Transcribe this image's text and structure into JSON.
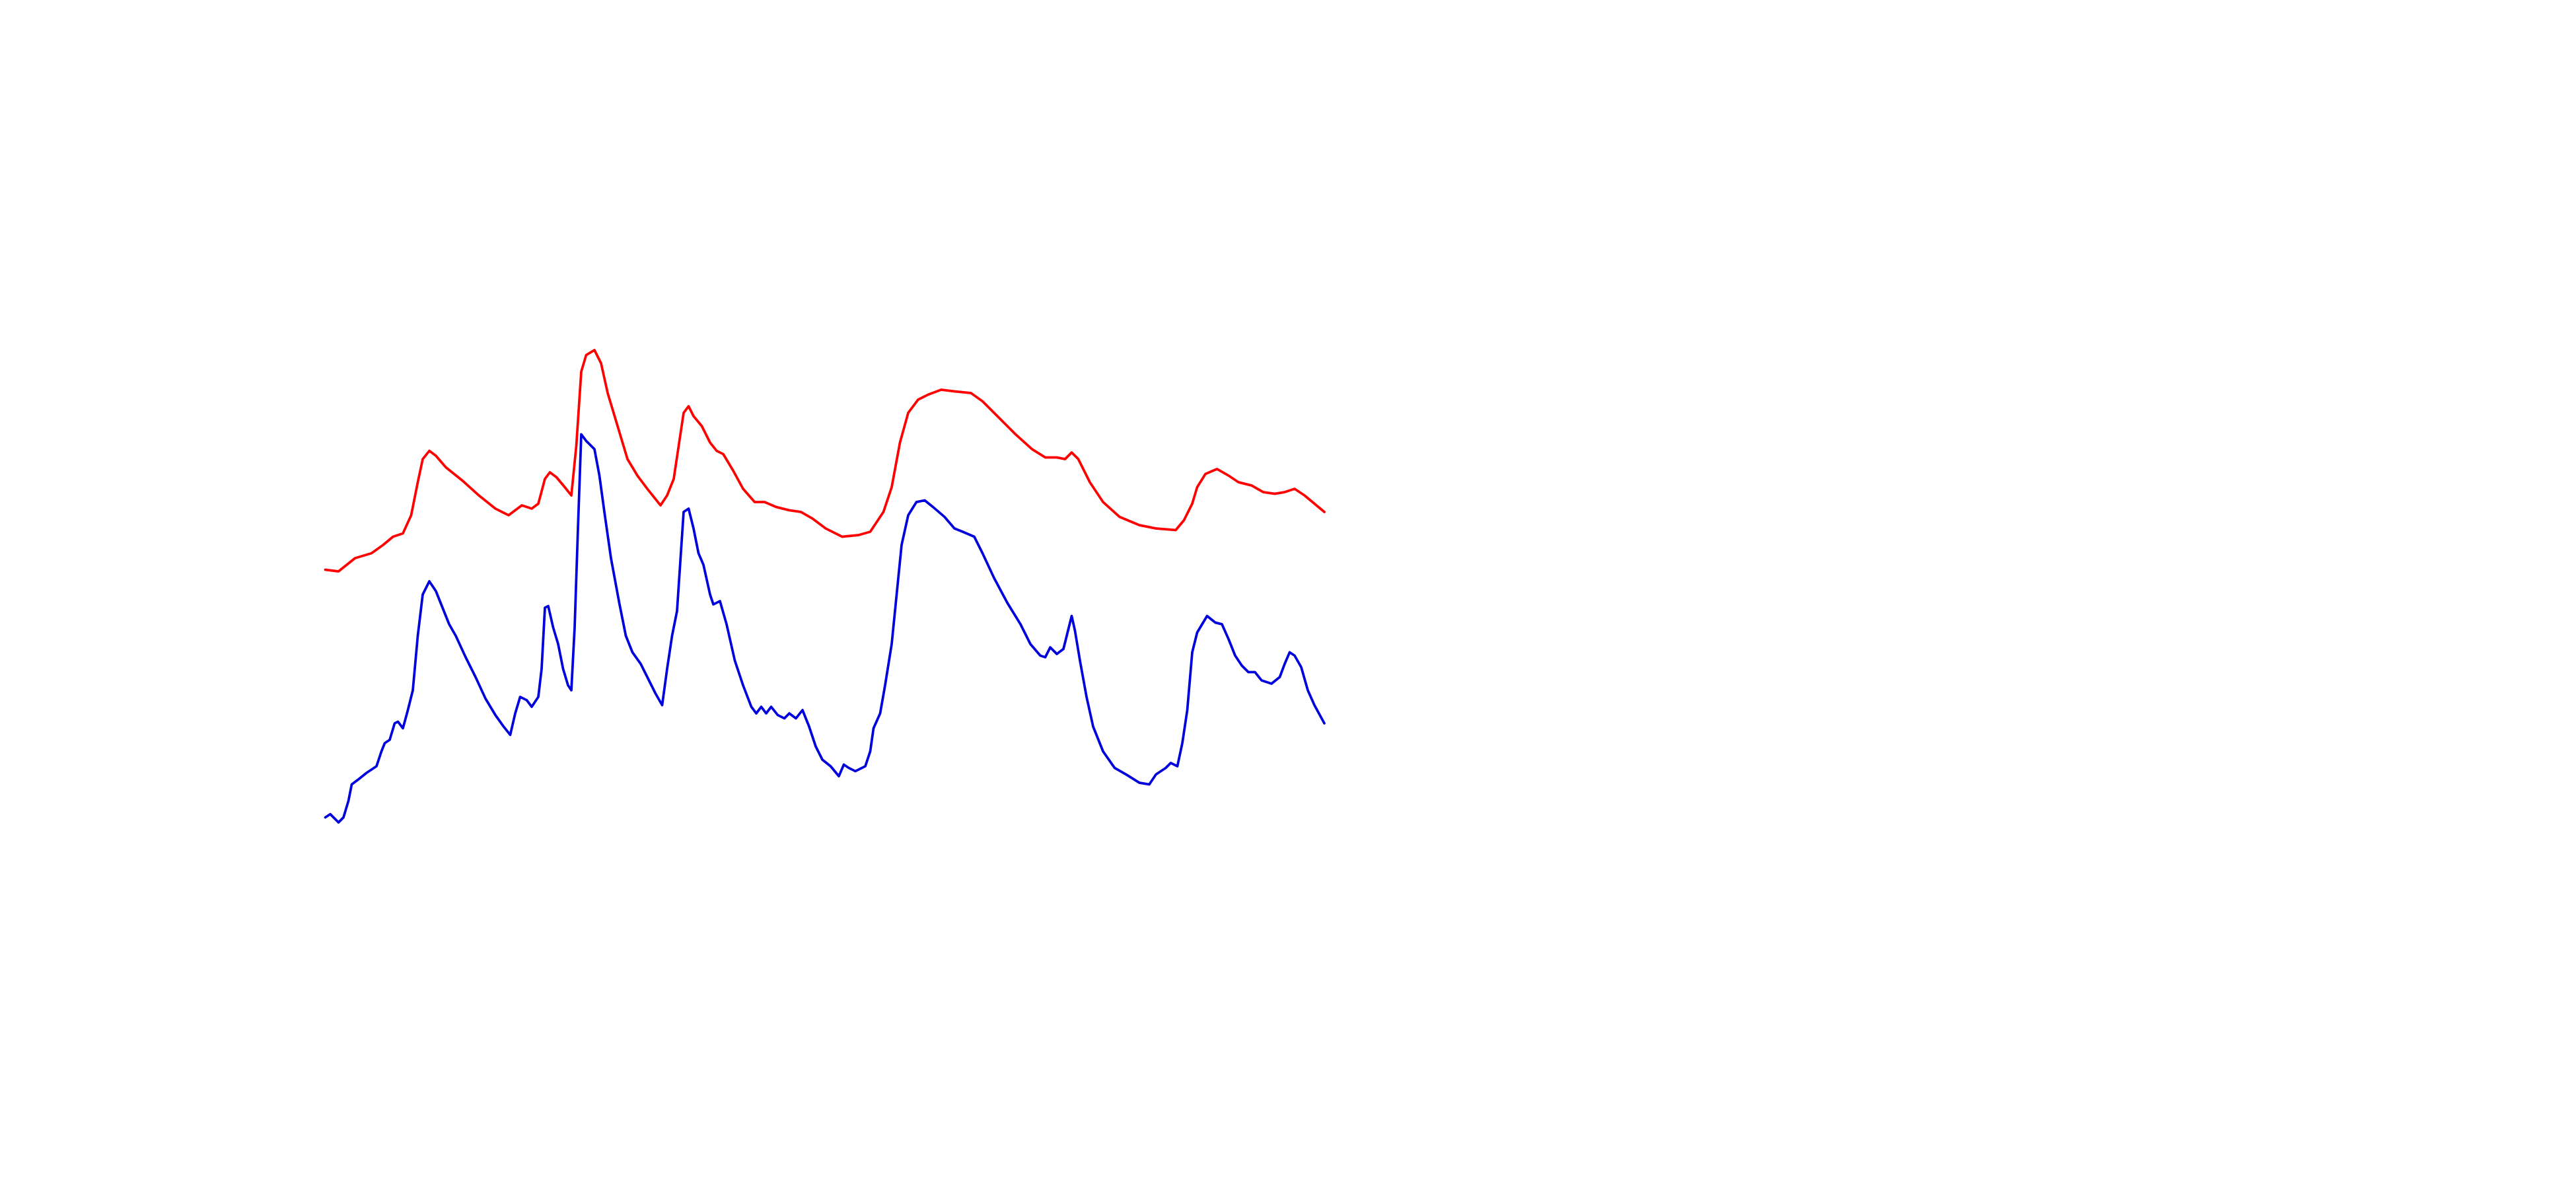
{
  "chart_data": {
    "type": "line",
    "xlim": [
      0,
      1560
    ],
    "ylim": [
      0,
      720
    ],
    "series": [
      {
        "color": "#ff0000",
        "x": [
          197,
          205,
          210,
          215,
          225,
          232,
          238,
          244,
          249,
          253,
          256,
          260,
          264,
          270,
          280,
          290,
          300,
          308,
          312,
          316,
          322,
          326,
          330,
          333,
          337,
          342,
          346,
          349,
          352,
          355,
          360,
          364,
          368,
          374,
          380,
          386,
          392,
          400,
          404,
          408,
          411,
          414,
          417,
          420,
          425,
          430,
          434,
          438,
          444,
          450,
          457,
          463,
          470,
          478,
          485,
          492,
          500,
          510,
          520,
          527,
          531,
          535,
          540,
          545,
          550,
          556,
          562,
          570,
          578,
          588,
          595,
          605,
          615,
          625,
          633,
          640,
          645,
          649,
          653,
          660,
          668,
          678,
          690,
          700,
          712,
          717,
          722,
          725,
          730,
          737,
          744,
          750,
          758,
          765,
          772,
          778,
          784,
          790,
          796,
          802
        ],
        "values": [
          375,
          374,
          378,
          382,
          385,
          390,
          395,
          397,
          408,
          428,
          442,
          447,
          444,
          437,
          429,
          420,
          412,
          408,
          411,
          414,
          412,
          415,
          430,
          434,
          431,
          425,
          420,
          450,
          495,
          505,
          508,
          500,
          482,
          462,
          442,
          432,
          424,
          414,
          420,
          430,
          450,
          470,
          474,
          468,
          462,
          452,
          447,
          445,
          435,
          424,
          416,
          416,
          413,
          411,
          410,
          406,
          400,
          395,
          396,
          398,
          404,
          410,
          425,
          452,
          470,
          478,
          481,
          484,
          483,
          482,
          477,
          467,
          457,
          448,
          443,
          443,
          442,
          446,
          442,
          428,
          416,
          407,
          402,
          400,
          399,
          405,
          415,
          425,
          433,
          436,
          432,
          428,
          426,
          422,
          421,
          422,
          424,
          420,
          415,
          410
        ]
      },
      {
        "color": "#0000dd",
        "x": [
          197,
          200,
          205,
          208,
          211,
          213,
          217,
          222,
          228,
          231,
          233,
          236,
          239,
          241,
          244,
          247,
          250,
          253,
          256,
          260,
          264,
          268,
          272,
          276,
          282,
          288,
          294,
          300,
          305,
          309,
          312,
          315,
          319,
          322,
          326,
          328,
          330,
          332,
          335,
          338,
          341,
          344,
          346,
          348,
          350,
          352,
          355,
          360,
          363,
          366,
          370,
          375,
          379,
          383,
          388,
          393,
          397,
          401,
          404,
          407,
          410,
          412,
          414,
          417,
          420,
          423,
          426,
          430,
          432,
          436,
          440,
          445,
          450,
          455,
          458,
          461,
          464,
          467,
          471,
          475,
          478,
          482,
          486,
          490,
          494,
          498,
          503,
          508,
          511,
          514,
          518,
          524,
          527,
          529,
          533,
          536,
          540,
          543,
          546,
          550,
          555,
          560,
          565,
          572,
          578,
          583,
          590,
          595,
          602,
          610,
          618,
          624,
          630,
          633,
          636,
          640,
          644,
          646,
          649,
          651,
          654,
          658,
          662,
          668,
          675,
          682,
          690,
          696,
          700,
          706,
          709,
          713,
          716,
          719,
          722,
          725,
          728,
          731,
          736,
          740,
          744,
          748,
          752,
          756,
          760,
          764,
          770,
          775,
          778,
          781,
          784,
          788,
          792,
          796,
          802
        ],
        "values": [
          225,
          227,
          222,
          225,
          235,
          245,
          248,
          252,
          256,
          265,
          270,
          272,
          282,
          283,
          279,
          290,
          302,
          335,
          360,
          368,
          362,
          352,
          342,
          335,
          322,
          310,
          297,
          287,
          280,
          275,
          288,
          298,
          296,
          292,
          298,
          315,
          352,
          353,
          340,
          330,
          315,
          305,
          302,
          340,
          400,
          457,
          453,
          448,
          432,
          410,
          382,
          355,
          335,
          325,
          318,
          308,
          300,
          293,
          315,
          335,
          350,
          380,
          410,
          412,
          400,
          385,
          378,
          360,
          354,
          356,
          342,
          320,
          305,
          292,
          288,
          292,
          288,
          292,
          287,
          285,
          288,
          285,
          290,
          280,
          268,
          260,
          256,
          250,
          257,
          255,
          253,
          256,
          265,
          279,
          288,
          305,
          330,
          360,
          390,
          408,
          416,
          417,
          413,
          407,
          400,
          398,
          395,
          385,
          370,
          355,
          342,
          330,
          323,
          322,
          328,
          324,
          327,
          335,
          347,
          338,
          320,
          298,
          280,
          265,
          255,
          251,
          246,
          245,
          251,
          255,
          258,
          256,
          270,
          290,
          325,
          337,
          342,
          347,
          343,
          342,
          333,
          323,
          317,
          313,
          313,
          308,
          306,
          310,
          318,
          325,
          323,
          316,
          302,
          293,
          282
        ]
      }
    ]
  }
}
